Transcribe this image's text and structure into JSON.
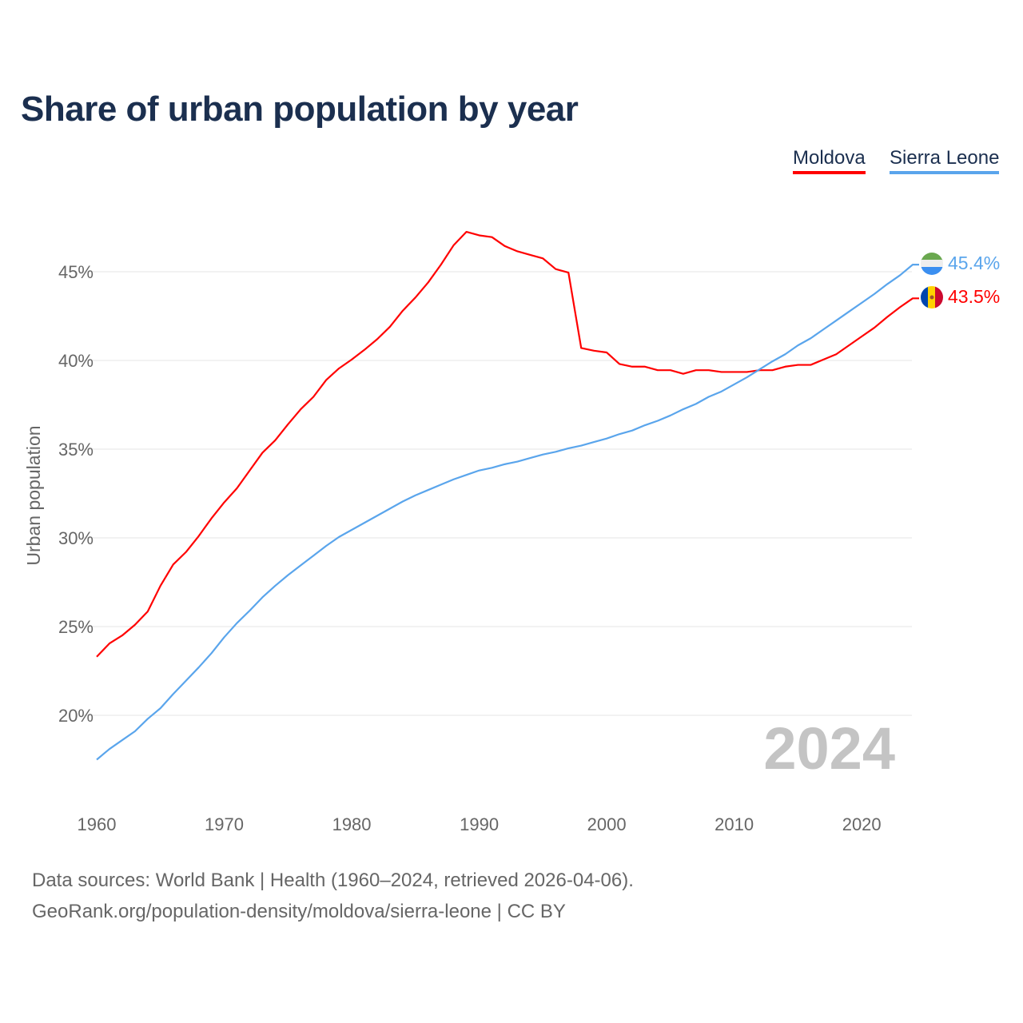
{
  "chart_data": {
    "type": "line",
    "title": "Share of urban population by year",
    "ylabel": "Urban population",
    "xlabel": "",
    "xlim": [
      1960,
      2024
    ],
    "ylim": [
      15,
      48
    ],
    "yticks": [
      20,
      25,
      30,
      35,
      40,
      45
    ],
    "ytick_labels": [
      "20%",
      "25%",
      "30%",
      "35%",
      "40%",
      "45%"
    ],
    "xticks": [
      1960,
      1970,
      1980,
      1990,
      2000,
      2010,
      2020
    ],
    "xtick_labels": [
      "1960",
      "1970",
      "1980",
      "1990",
      "2000",
      "2010",
      "2020"
    ],
    "grid": true,
    "legend_position": "top-right",
    "year_watermark": "2024",
    "series": [
      {
        "name": "Moldova",
        "color": "#ff0000",
        "end_label": "43.5%",
        "flag": "moldova-flag",
        "values": [
          23.3,
          24.05,
          24.5,
          25.1,
          25.85,
          27.3,
          28.5,
          29.2,
          30.1,
          31.1,
          32.0,
          32.8,
          33.8,
          34.8,
          35.5,
          36.4,
          37.25,
          37.95,
          38.9,
          39.55,
          40.05,
          40.6,
          41.2,
          41.9,
          42.8,
          43.55,
          44.4,
          45.4,
          46.5,
          47.25,
          47.05,
          46.95,
          46.45,
          46.15,
          45.95,
          45.75,
          45.15,
          44.95,
          40.7,
          40.55,
          40.45,
          39.8,
          39.65,
          39.65,
          39.45,
          39.45,
          39.25,
          39.45,
          39.45,
          39.35,
          39.35,
          39.35,
          39.45,
          39.45,
          39.65,
          39.75,
          39.75,
          40.05,
          40.35,
          40.85,
          41.35,
          41.85,
          42.45,
          43.0,
          43.5
        ]
      },
      {
        "name": "Sierra Leone",
        "color": "#5aa5ec",
        "end_label": "45.4%",
        "flag": "sierra-leone-flag",
        "values": [
          17.5,
          18.1,
          18.6,
          19.1,
          19.8,
          20.4,
          21.2,
          21.95,
          22.7,
          23.5,
          24.4,
          25.2,
          25.9,
          26.65,
          27.3,
          27.9,
          28.45,
          29.0,
          29.55,
          30.05,
          30.45,
          30.85,
          31.25,
          31.65,
          32.05,
          32.4,
          32.7,
          33.0,
          33.3,
          33.55,
          33.8,
          33.95,
          34.15,
          34.3,
          34.5,
          34.7,
          34.85,
          35.05,
          35.2,
          35.4,
          35.6,
          35.85,
          36.05,
          36.35,
          36.6,
          36.9,
          37.25,
          37.55,
          37.95,
          38.25,
          38.65,
          39.05,
          39.5,
          39.95,
          40.35,
          40.85,
          41.25,
          41.75,
          42.25,
          42.75,
          43.25,
          43.75,
          44.3,
          44.8,
          45.4
        ]
      }
    ]
  },
  "footer": {
    "line1": "Data sources: World Bank | Health (1960–2024, retrieved 2026-04-06).",
    "line2": "GeoRank.org/population-density/moldova/sierra-leone | CC BY"
  }
}
